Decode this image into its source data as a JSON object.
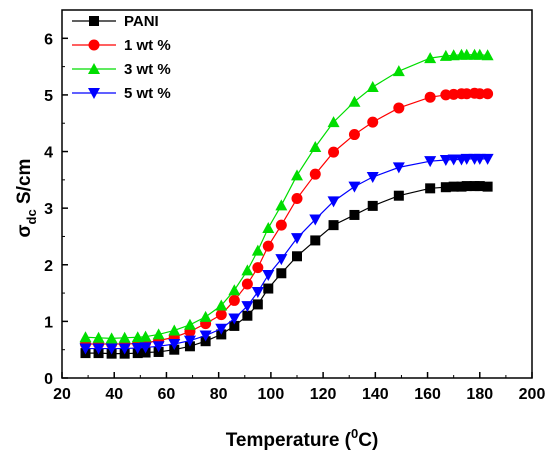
{
  "chart_data": {
    "type": "line",
    "title": "",
    "xlabel": {
      "main": "Temperature (",
      "sup": "0",
      "tail": "C)"
    },
    "ylabel": {
      "main": "σ",
      "sub": "dc",
      "tail": " S/cm"
    },
    "xlim": [
      20,
      200
    ],
    "ylim": [
      0,
      6.5
    ],
    "xticks": [
      20,
      40,
      60,
      80,
      100,
      120,
      140,
      160,
      180,
      200
    ],
    "yticks": [
      0,
      1,
      2,
      3,
      4,
      5,
      6
    ],
    "grid": false,
    "legend_position": "top-left",
    "series": [
      {
        "name": "PANI",
        "color": "#000000",
        "marker": "square",
        "x": [
          29,
          34,
          39,
          44,
          49,
          52,
          57,
          63,
          69,
          75,
          81,
          86,
          91,
          95,
          99,
          104,
          110,
          117,
          124,
          132,
          139,
          149,
          161,
          167,
          170,
          173,
          175,
          178,
          180,
          183
        ],
        "y": [
          0.44,
          0.44,
          0.43,
          0.43,
          0.44,
          0.45,
          0.46,
          0.5,
          0.56,
          0.65,
          0.77,
          0.92,
          1.1,
          1.3,
          1.58,
          1.85,
          2.15,
          2.43,
          2.7,
          2.88,
          3.04,
          3.22,
          3.35,
          3.37,
          3.38,
          3.38,
          3.39,
          3.39,
          3.39,
          3.38
        ]
      },
      {
        "name": "1 wt %",
        "color": "#ff0000",
        "marker": "circle",
        "x": [
          29,
          34,
          39,
          44,
          49,
          52,
          57,
          63,
          69,
          75,
          81,
          86,
          91,
          95,
          99,
          104,
          110,
          117,
          124,
          132,
          139,
          149,
          161,
          167,
          170,
          173,
          175,
          178,
          180,
          183
        ],
        "y": [
          0.6,
          0.6,
          0.6,
          0.6,
          0.61,
          0.62,
          0.66,
          0.72,
          0.82,
          0.96,
          1.12,
          1.37,
          1.66,
          1.95,
          2.33,
          2.7,
          3.17,
          3.6,
          3.99,
          4.3,
          4.52,
          4.77,
          4.96,
          5.0,
          5.01,
          5.02,
          5.02,
          5.03,
          5.02,
          5.02
        ]
      },
      {
        "name": "3 wt %",
        "color": "#00dd00",
        "marker": "triangle-up",
        "x": [
          29,
          34,
          39,
          44,
          49,
          52,
          57,
          63,
          69,
          75,
          81,
          86,
          91,
          95,
          99,
          104,
          110,
          117,
          124,
          132,
          139,
          149,
          161,
          167,
          170,
          173,
          175,
          178,
          180,
          183
        ],
        "y": [
          0.72,
          0.71,
          0.7,
          0.71,
          0.72,
          0.73,
          0.77,
          0.84,
          0.94,
          1.08,
          1.28,
          1.55,
          1.9,
          2.25,
          2.65,
          3.05,
          3.58,
          4.08,
          4.52,
          4.88,
          5.14,
          5.42,
          5.65,
          5.69,
          5.7,
          5.71,
          5.71,
          5.71,
          5.71,
          5.7
        ]
      },
      {
        "name": "5 wt %",
        "color": "#0000ff",
        "marker": "triangle-down",
        "x": [
          29,
          34,
          39,
          44,
          49,
          52,
          57,
          63,
          69,
          75,
          81,
          86,
          91,
          95,
          99,
          104,
          110,
          117,
          124,
          132,
          139,
          149,
          161,
          167,
          170,
          173,
          175,
          178,
          180,
          183
        ],
        "y": [
          0.52,
          0.52,
          0.52,
          0.52,
          0.53,
          0.54,
          0.56,
          0.6,
          0.66,
          0.75,
          0.87,
          1.05,
          1.27,
          1.52,
          1.82,
          2.1,
          2.47,
          2.8,
          3.12,
          3.38,
          3.55,
          3.72,
          3.83,
          3.85,
          3.86,
          3.86,
          3.87,
          3.87,
          3.87,
          3.87
        ]
      }
    ]
  }
}
